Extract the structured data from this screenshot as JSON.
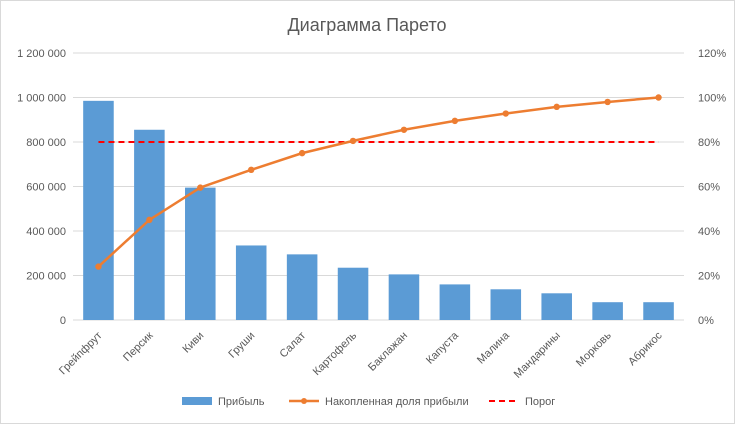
{
  "chart_data": {
    "type": "bar",
    "title": "Диаграмма Парето",
    "categories": [
      "Грейпфрут",
      "Персик",
      "Киви",
      "Груши",
      "Салат",
      "Картофель",
      "Баклажан",
      "Капуста",
      "Малина",
      "Мандарины",
      "Морковь",
      "Абрикос"
    ],
    "series": [
      {
        "name": "Прибыль",
        "type": "bar",
        "axis": "left",
        "color": "#5b9bd5",
        "values": [
          985000,
          855000,
          595000,
          335000,
          295000,
          235000,
          205000,
          160000,
          138000,
          120000,
          80000,
          80000
        ]
      },
      {
        "name": "Накопленная доля прибыли",
        "type": "line",
        "axis": "right",
        "color": "#ed7d31",
        "values": [
          24,
          45,
          59.5,
          67.5,
          75,
          80.5,
          85.5,
          89.5,
          92.8,
          95.8,
          98,
          100
        ]
      },
      {
        "name": "Порог",
        "type": "dashed-line",
        "axis": "right",
        "color": "#ff0000",
        "values": [
          80,
          80,
          80,
          80,
          80,
          80,
          80,
          80,
          80,
          80,
          80,
          80
        ]
      }
    ],
    "y_left": {
      "min": 0,
      "max": 1200000,
      "ticks": [
        "0",
        "200 000",
        "400 000",
        "600 000",
        "800 000",
        "1 000 000",
        "1 200 000"
      ]
    },
    "y_right": {
      "min": 0,
      "max": 120,
      "ticks": [
        "0%",
        "20%",
        "40%",
        "60%",
        "80%",
        "100%",
        "120%"
      ]
    },
    "grid": true,
    "legend_position": "bottom"
  }
}
